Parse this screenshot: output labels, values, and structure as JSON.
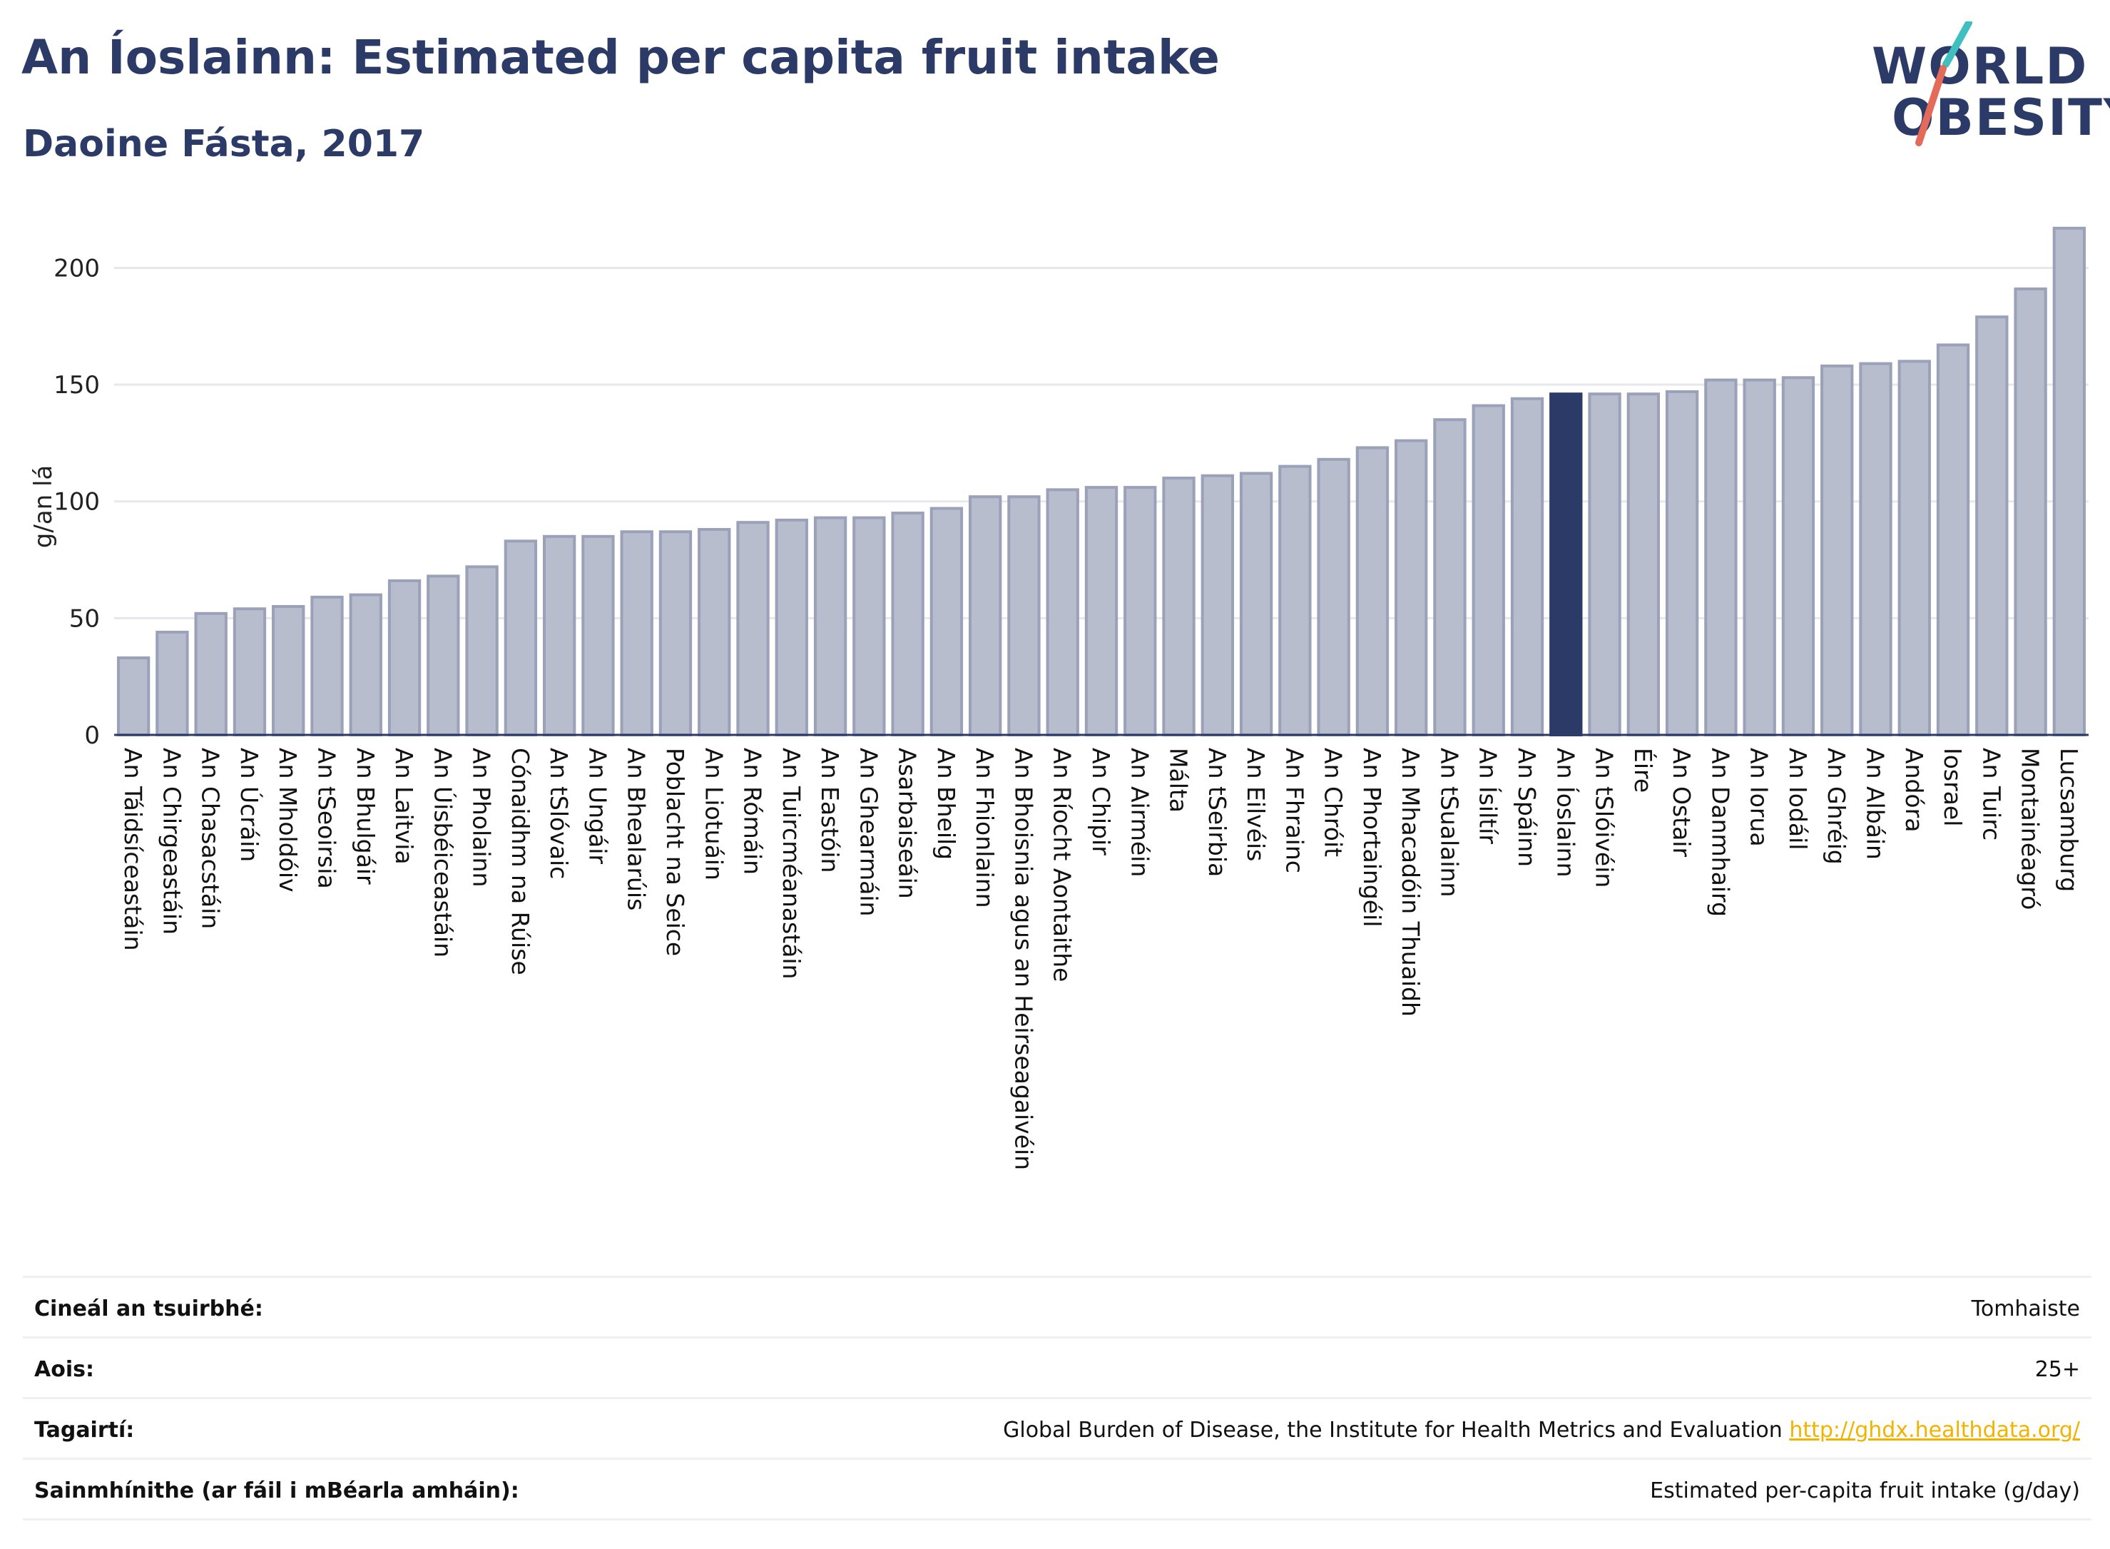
{
  "title": "An Íoslainn: Estimated per capita fruit intake",
  "subtitle": "Daoine Fásta, 2017",
  "logo": {
    "line1": "WORLD",
    "line2": "OBESITY"
  },
  "colors": {
    "bar": "#b8bdcd",
    "bar_border": "#9aa1b8",
    "highlight": "#2b3a66",
    "text": "#2b3a66",
    "grid": "#e6e8ee",
    "link": "#f0b400",
    "slash_teal": "#3fbfbf",
    "slash_red": "#e46a5a"
  },
  "chart_data": {
    "type": "bar",
    "ylabel": "g/an lá",
    "ylim": [
      0,
      220
    ],
    "yticks": [
      0,
      50,
      100,
      150,
      200
    ],
    "grid": true,
    "highlight": "An Íoslainn",
    "categories": [
      "An Táidsíceastáin",
      "An Chirgeastáin",
      "An Chasacstáin",
      "An Úcráin",
      "An Mholdóiv",
      "An tSeoirsia",
      "An Bhulgáir",
      "An Laitvia",
      "An Úisbéiceastáin",
      "An Pholainn",
      "Cónaidhm na Rúise",
      "An tSlóvaic",
      "An Ungáir",
      "An Bhealarúis",
      "Poblacht na Seice",
      "An Liotuáin",
      "An Rómáin",
      "An Tuircméanastáin",
      "An Eastóin",
      "An Ghearmáin",
      "Asarbaiseáin",
      "An Bheilg",
      "An Fhionlainn",
      "An Bhoisnia agus an Heirseagaivéin",
      "An Ríocht Aontaithe",
      "An Chipir",
      "An Airméin",
      "Málta",
      "An tSeirbia",
      "An Eilvéis",
      "An Fhrainc",
      "An Chróit",
      "An Phortaingéil",
      "An Mhacadóin Thuaidh",
      "An tSualainn",
      "An Ísiltír",
      "An Spáinn",
      "An Íoslainn",
      "An tSlóivéin",
      "Éire",
      "An Ostair",
      "An Danmhairg",
      "An Iorua",
      "An Iodáil",
      "An Ghréig",
      "An Albáin",
      "Andóra",
      "Iosrael",
      "An Tuirc",
      "Montainéagró",
      "Lucsamburg"
    ],
    "values": [
      33,
      44,
      52,
      54,
      55,
      59,
      60,
      66,
      68,
      72,
      83,
      85,
      85,
      87,
      87,
      88,
      91,
      92,
      93,
      93,
      95,
      97,
      102,
      102,
      105,
      106,
      106,
      110,
      111,
      112,
      115,
      118,
      123,
      126,
      135,
      141,
      144,
      146,
      146,
      146,
      147,
      152,
      152,
      153,
      158,
      159,
      160,
      167,
      179,
      191,
      217
    ]
  },
  "info": {
    "survey_type": {
      "label": "Cineál an tsuirbhé:",
      "value": "Tomhaiste"
    },
    "age": {
      "label": "Aois:",
      "value": "25+"
    },
    "references": {
      "label": "Tagairtí:",
      "value": "Global Burden of Disease, the Institute for Health Metrics and Evaluation",
      "link": "http://ghdx.healthdata.org/"
    },
    "definitions": {
      "label": "Sainmhínithe (ar fáil i mBéarla amháin):",
      "value": "Estimated per-capita fruit intake (g/day)"
    }
  }
}
